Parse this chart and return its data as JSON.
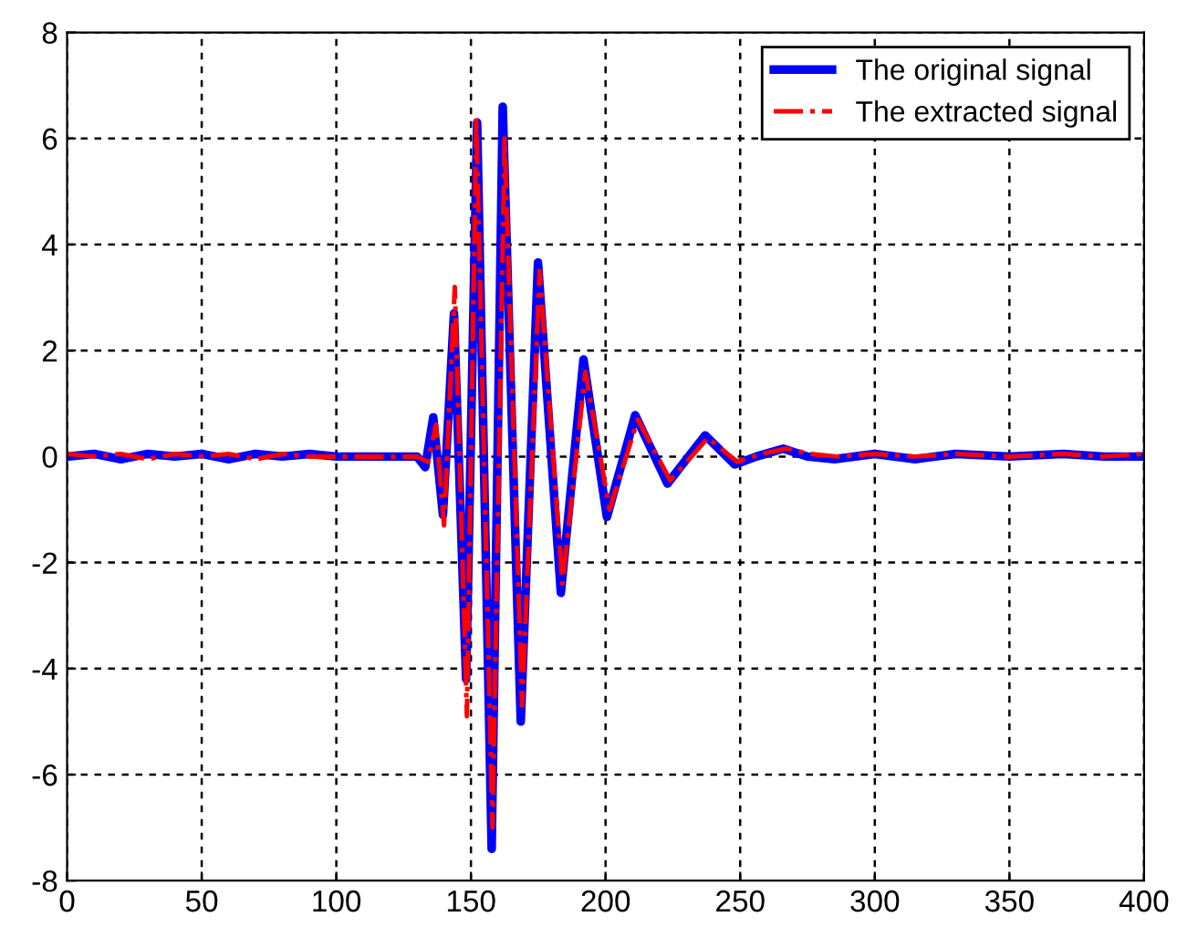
{
  "chart_data": {
    "type": "line",
    "xlim": [
      0,
      400
    ],
    "ylim": [
      -8,
      8
    ],
    "xticks": [
      0,
      50,
      100,
      150,
      200,
      250,
      300,
      350,
      400
    ],
    "yticks": [
      -8,
      -6,
      -4,
      -2,
      0,
      2,
      4,
      6,
      8
    ],
    "grid": true,
    "legend": "top right",
    "marker": "none",
    "series": [
      {
        "name": "The original signal",
        "color": "#0000ff",
        "line_style": "solid",
        "x": [
          0,
          10,
          20,
          30,
          40,
          50,
          60,
          70,
          80,
          90,
          100,
          110,
          120,
          130,
          133,
          136,
          139.6,
          143.7,
          148.2,
          152.3,
          157.7,
          161.8,
          168.5,
          174.9,
          183.4,
          191.8,
          200.5,
          211,
          223,
          237,
          248,
          256,
          266,
          275,
          285,
          300,
          315,
          330,
          350,
          370,
          385,
          400
        ],
        "values": [
          0,
          0.05,
          -0.05,
          0.05,
          0,
          0.05,
          -0.05,
          0.05,
          0,
          0.05,
          0,
          0,
          0,
          0,
          -0.2,
          0.74,
          -1.1,
          2.7,
          -4.2,
          6.3,
          -7.4,
          6.6,
          -5.0,
          3.66,
          -2.57,
          1.83,
          -1.14,
          0.78,
          -0.51,
          0.4,
          -0.15,
          0,
          0.15,
          0,
          -0.05,
          0.05,
          -0.05,
          0.05,
          0,
          0.05,
          0,
          0
        ]
      },
      {
        "name": "The extracted signal",
        "color": "#ff0000",
        "line_style": "dashdot",
        "x": [
          0,
          10,
          20,
          30,
          40,
          50,
          60,
          70,
          80,
          90,
          100,
          110,
          120,
          130,
          134,
          137,
          140,
          144,
          148.5,
          152,
          158,
          162.5,
          169,
          175.5,
          184,
          192.5,
          201.5,
          212,
          224,
          238,
          249,
          258,
          267,
          276,
          286,
          300,
          315,
          330,
          350,
          370,
          385,
          400
        ],
        "values": [
          0.05,
          0,
          0.05,
          -0.05,
          0.05,
          0,
          0.05,
          -0.05,
          0.05,
          0,
          0,
          0,
          0,
          0,
          -0.1,
          0.6,
          -1.3,
          3.2,
          -4.9,
          6.4,
          -7.0,
          6.0,
          -4.7,
          3.5,
          -2.4,
          1.6,
          -1.0,
          0.7,
          -0.45,
          0.35,
          -0.1,
          0.05,
          0.15,
          0.05,
          0,
          0.05,
          0,
          0.05,
          0,
          0.05,
          0,
          0.05
        ]
      }
    ]
  }
}
